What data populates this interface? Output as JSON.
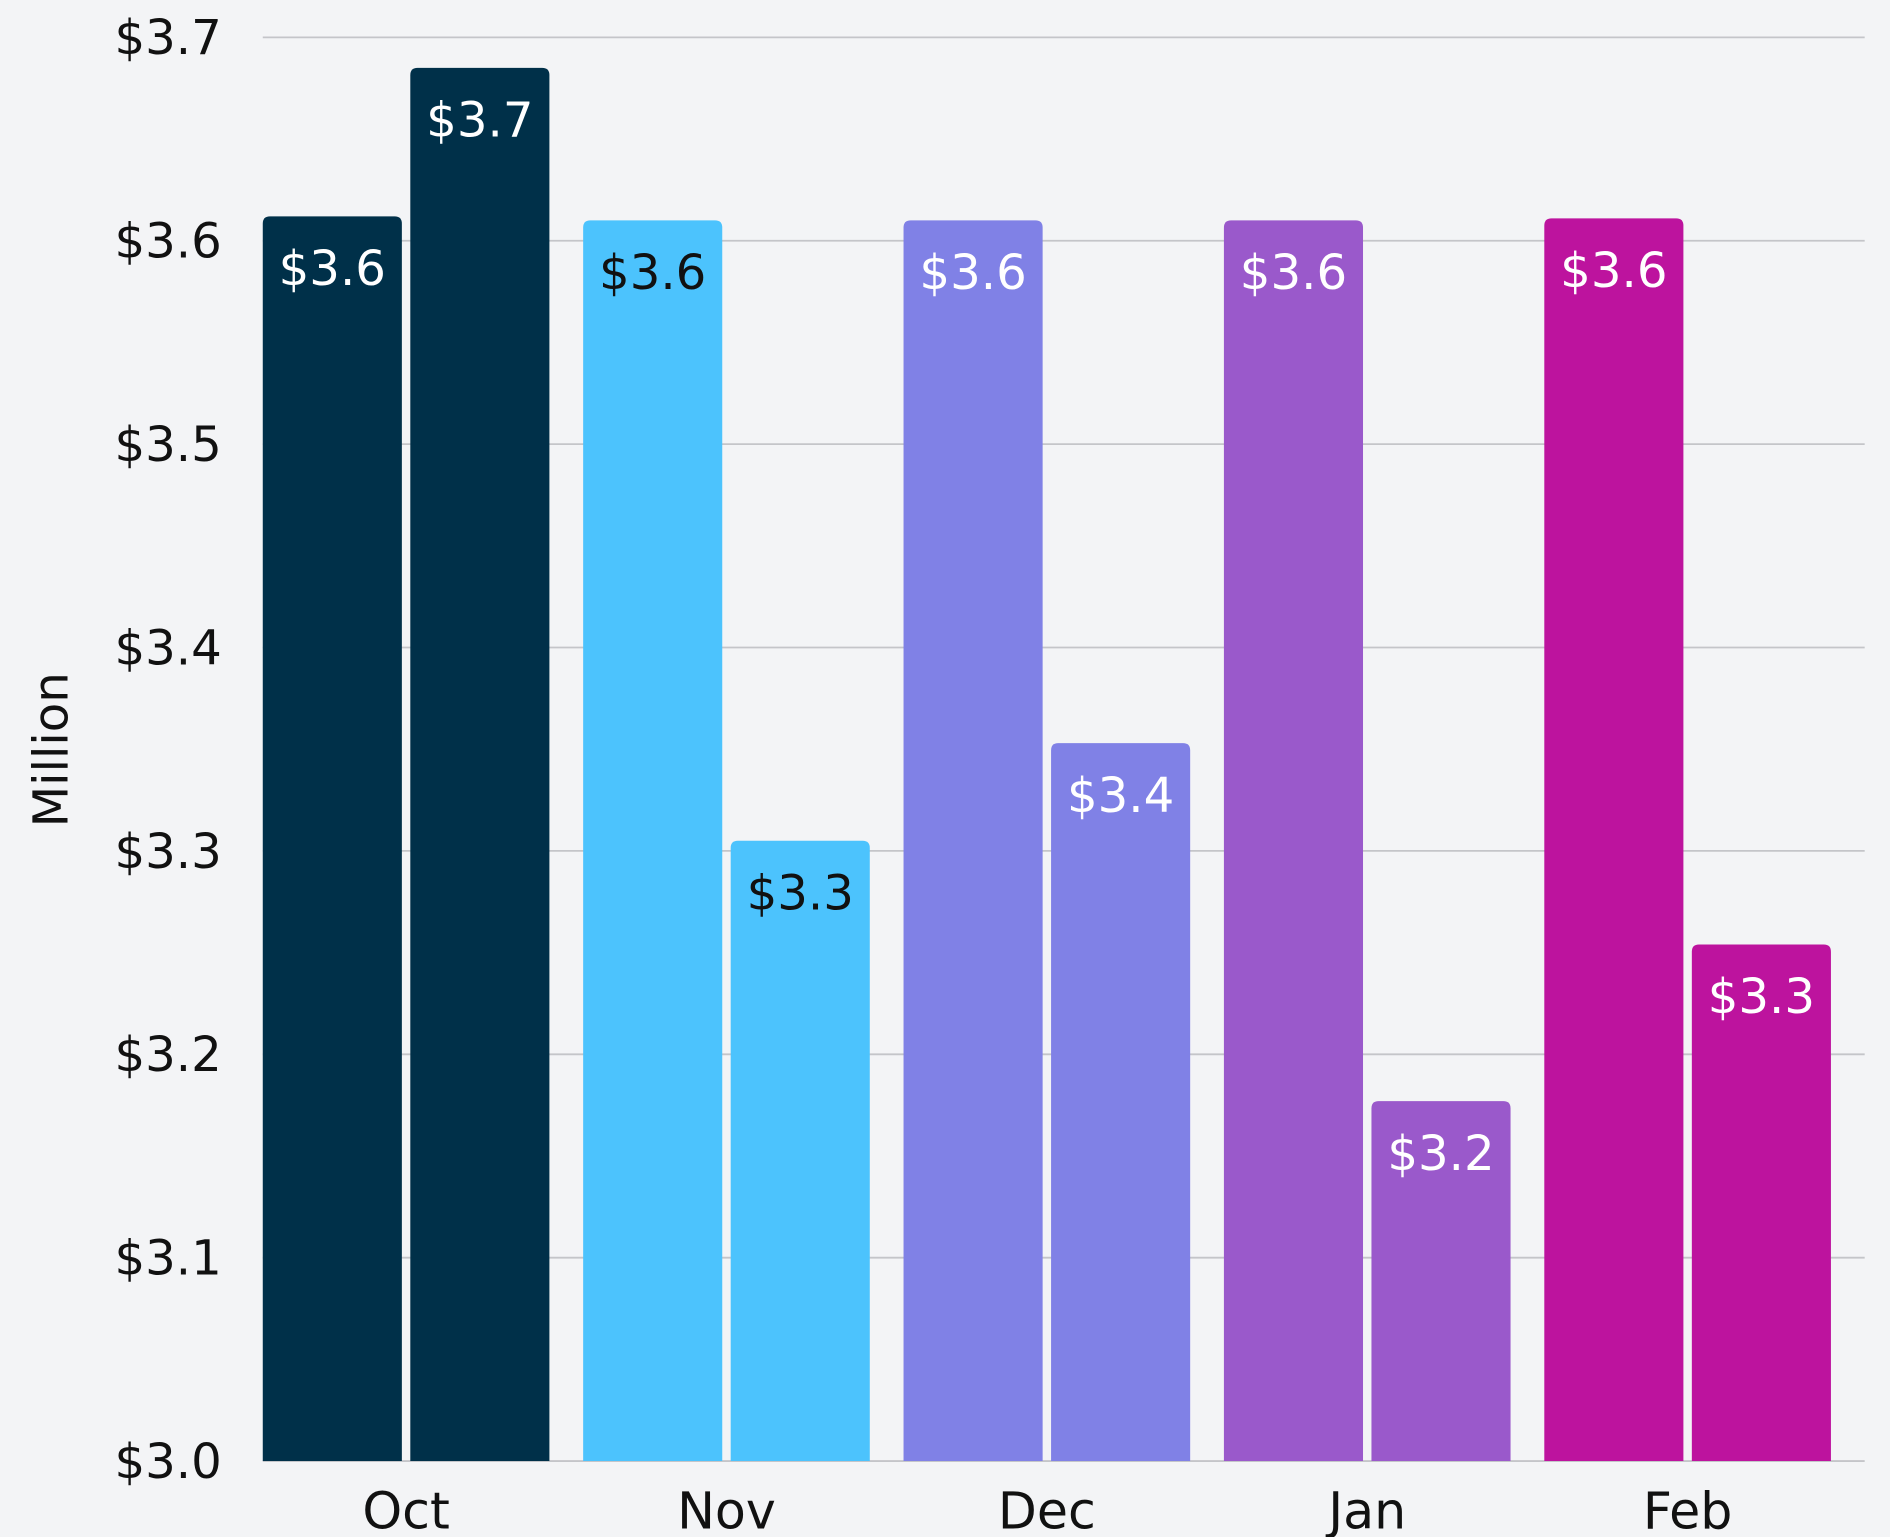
{
  "chart_data": {
    "type": "bar",
    "y_label": "Million",
    "categories": [
      "Oct",
      "Nov",
      "Dec",
      "Jan",
      "Feb"
    ],
    "colors": [
      "#003049",
      "#4cc3fd",
      "#8081e6",
      "#9a59cb",
      "#bd139e"
    ],
    "label_colors": [
      "#ffffff",
      "#111111",
      "#ffffff",
      "#ffffff",
      "#ffffff"
    ],
    "series": [
      {
        "values": [
          3.612,
          3.61,
          3.61,
          3.61,
          3.611
        ],
        "value_labels": [
          "$3.6",
          "$3.6",
          "$3.6",
          "$3.6",
          "$3.6"
        ]
      },
      {
        "values": [
          3.685,
          3.305,
          3.353,
          3.177,
          3.254
        ],
        "value_labels": [
          "$3.7",
          "$3.3",
          "$3.4",
          "$3.2",
          "$3.3"
        ]
      }
    ],
    "ylim": [
      3.0,
      3.7
    ],
    "yticks": [
      {
        "value": 3.0,
        "label": "$3.0"
      },
      {
        "value": 3.1,
        "label": "$3.1"
      },
      {
        "value": 3.2,
        "label": "$3.2"
      },
      {
        "value": 3.3,
        "label": "$3.3"
      },
      {
        "value": 3.4,
        "label": "$3.4"
      },
      {
        "value": 3.5,
        "label": "$3.5"
      },
      {
        "value": 3.6,
        "label": "$3.6"
      },
      {
        "value": 3.7,
        "label": "$3.7"
      }
    ],
    "grid": true
  }
}
